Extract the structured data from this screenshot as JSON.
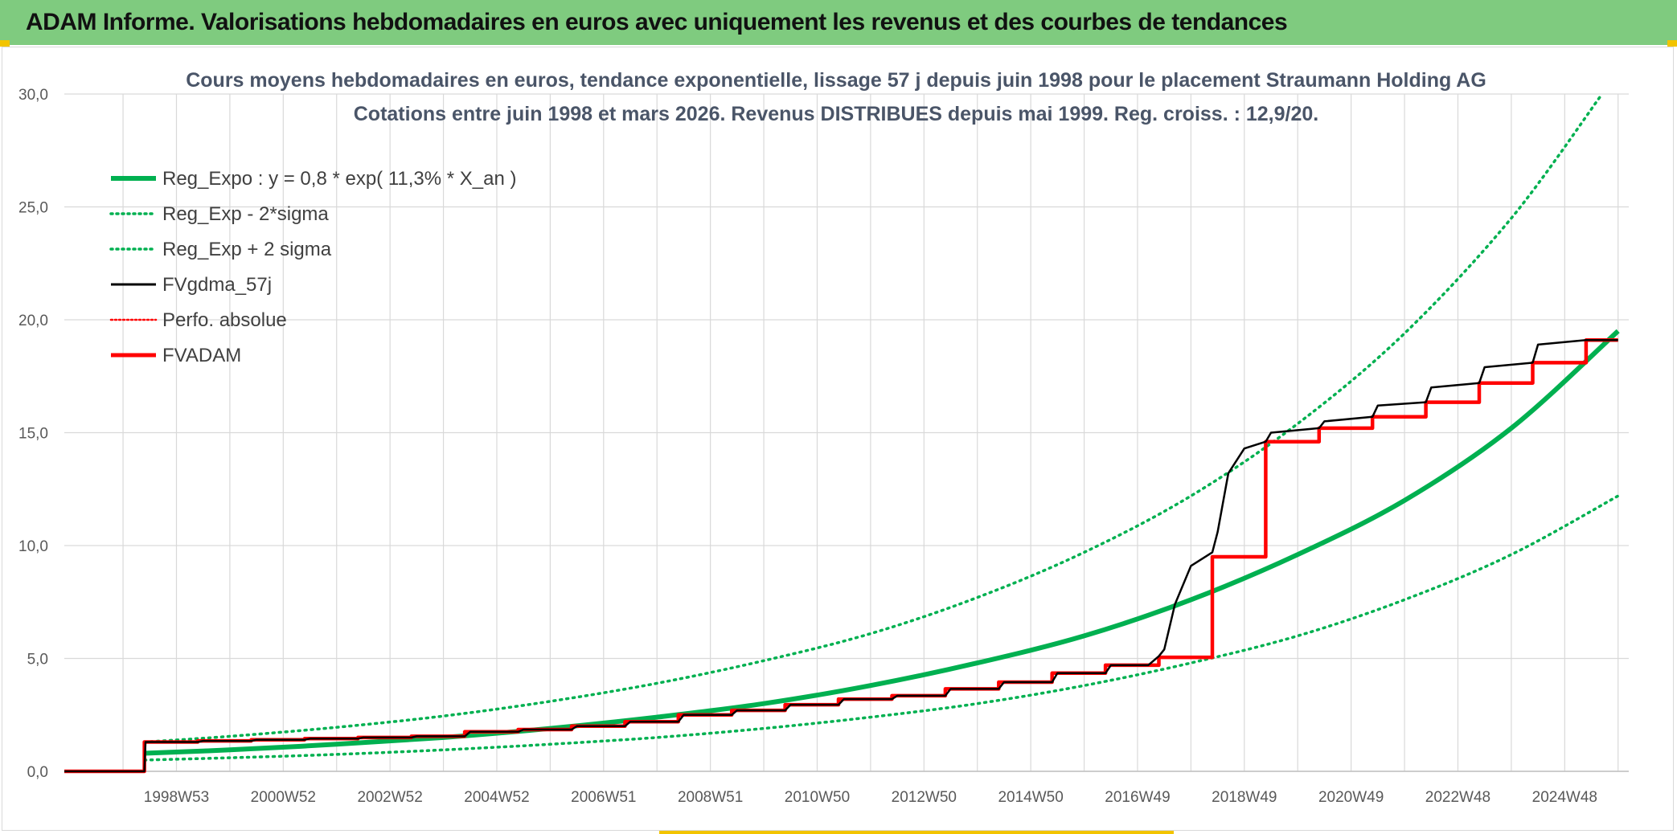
{
  "header": {
    "title": "ADAM Informe. Valorisations hebdomadaires en euros avec uniquement les revenus et des courbes de tendances"
  },
  "colors": {
    "header_bg": "#7fcb7f",
    "reg_expo": "#00b050",
    "fvgdma": "#000000",
    "fvadam": "#ff0000",
    "perfo": "#ff0000",
    "grid": "#d9d9d9"
  },
  "chart_data": {
    "type": "line",
    "title_line1": "Cours moyens hebdomadaires en euros, tendance exponentielle, lissage 57 j depuis juin 1998 pour le placement Straumann Holding AG",
    "title_line2": "Cotations entre juin 1998 et mars 2026. Revenus DISTRIBUES depuis mai 1999. Reg. croiss. : 12,9/20.",
    "ylim": [
      0,
      30
    ],
    "xlim": [
      1996.9,
      2026.2
    ],
    "grid": true,
    "legend_position": "top-left",
    "y_ticks": [
      "0,0",
      "5,0",
      "10,0",
      "15,0",
      "20,0",
      "25,0",
      "30,0"
    ],
    "x_ticks": [
      {
        "label": "1998W53",
        "x": 1999.0
      },
      {
        "label": "2000W52",
        "x": 2001.0
      },
      {
        "label": "2002W52",
        "x": 2003.0
      },
      {
        "label": "2004W52",
        "x": 2005.0
      },
      {
        "label": "2006W51",
        "x": 2007.0
      },
      {
        "label": "2008W51",
        "x": 2009.0
      },
      {
        "label": "2010W50",
        "x": 2011.0
      },
      {
        "label": "2012W50",
        "x": 2013.0
      },
      {
        "label": "2014W50",
        "x": 2015.0
      },
      {
        "label": "2016W49",
        "x": 2017.0
      },
      {
        "label": "2018W49",
        "x": 2019.0
      },
      {
        "label": "2020W49",
        "x": 2021.0
      },
      {
        "label": "2022W48",
        "x": 2023.0
      },
      {
        "label": "2024W48",
        "x": 2025.0
      }
    ],
    "legend": [
      {
        "label": "Reg_Expo : y = 0,8 * exp( 11,3% *  X_an )",
        "style": "thick-green"
      },
      {
        "label": "Reg_Exp - 2*sigma",
        "style": "dotted-green"
      },
      {
        "label": "Reg_Exp + 2 sigma",
        "style": "dotted-green"
      },
      {
        "label": "FVgdma_57j",
        "style": "black"
      },
      {
        "label": "Perfo. absolue",
        "style": "dotted-red"
      },
      {
        "label": "FVADAM",
        "style": "thick-red"
      }
    ],
    "series": [
      {
        "name": "Reg_Expo : y = 0,8 * exp( 11,3% *  X_an )",
        "x": [
          1998.4,
          2000,
          2002,
          2004,
          2006,
          2008,
          2010,
          2012,
          2014,
          2016,
          2018,
          2020,
          2022,
          2024,
          2026
        ],
        "values": [
          0.8,
          0.95,
          1.2,
          1.5,
          1.9,
          2.4,
          3.0,
          3.8,
          4.8,
          6.0,
          7.6,
          9.6,
          12.0,
          15.2,
          19.5
        ]
      },
      {
        "name": "Reg_Exp - 2*sigma",
        "x": [
          1998.4,
          2000,
          2002,
          2004,
          2006,
          2008,
          2010,
          2012,
          2014,
          2016,
          2018,
          2020,
          2022,
          2024,
          2026
        ],
        "values": [
          0.5,
          0.6,
          0.75,
          0.95,
          1.2,
          1.5,
          1.9,
          2.4,
          3.0,
          3.8,
          4.8,
          6.0,
          7.6,
          9.6,
          12.2
        ]
      },
      {
        "name": "Reg_Exp + 2 sigma",
        "x": [
          1998.4,
          2000,
          2002,
          2004,
          2006,
          2008,
          2010,
          2012,
          2014,
          2016,
          2018,
          2020,
          2022,
          2024,
          2025.7
        ],
        "values": [
          1.3,
          1.55,
          1.95,
          2.45,
          3.1,
          3.9,
          4.9,
          6.1,
          7.7,
          9.7,
          12.2,
          15.4,
          19.4,
          24.5,
          30.0
        ]
      },
      {
        "name": "FVADAM",
        "x": [
          1996.9,
          1998.4,
          1998.4,
          1999.4,
          1999.4,
          2000.4,
          2000.4,
          2001.4,
          2001.4,
          2002.4,
          2002.4,
          2003.4,
          2003.4,
          2004.4,
          2004.4,
          2005.4,
          2005.4,
          2006.4,
          2006.4,
          2007.4,
          2007.4,
          2008.4,
          2008.4,
          2009.4,
          2009.4,
          2010.4,
          2010.4,
          2011.4,
          2011.4,
          2012.4,
          2012.4,
          2013.4,
          2013.4,
          2014.4,
          2014.4,
          2015.4,
          2015.4,
          2016.4,
          2016.4,
          2017.4,
          2017.4,
          2018.4,
          2018.4,
          2019.4,
          2019.4,
          2020.4,
          2020.4,
          2021.4,
          2021.4,
          2022.4,
          2022.4,
          2023.4,
          2023.4,
          2024.4,
          2024.4,
          2025.4,
          2025.4,
          2026.0
        ],
        "values": [
          0,
          0,
          1.3,
          1.3,
          1.35,
          1.35,
          1.4,
          1.4,
          1.45,
          1.45,
          1.5,
          1.5,
          1.55,
          1.55,
          1.75,
          1.75,
          1.85,
          1.85,
          2.0,
          2.0,
          2.2,
          2.2,
          2.5,
          2.5,
          2.7,
          2.7,
          2.95,
          2.95,
          3.2,
          3.2,
          3.35,
          3.35,
          3.65,
          3.65,
          3.95,
          3.95,
          4.35,
          4.35,
          4.7,
          4.7,
          5.05,
          5.05,
          9.5,
          9.5,
          14.6,
          14.6,
          15.2,
          15.2,
          15.7,
          15.7,
          16.35,
          16.35,
          17.2,
          17.2,
          18.1,
          18.1,
          19.1,
          19.1
        ]
      },
      {
        "name": "FVgdma_57j",
        "x": [
          1996.9,
          1998.4,
          1998.42,
          1999.4,
          1999.5,
          2000.4,
          2000.5,
          2001.4,
          2001.5,
          2002.4,
          2002.5,
          2003.4,
          2003.5,
          2004.4,
          2004.5,
          2005.4,
          2005.5,
          2006.4,
          2006.5,
          2007.4,
          2007.5,
          2008.4,
          2008.5,
          2009.4,
          2009.5,
          2010.4,
          2010.5,
          2011.4,
          2011.5,
          2012.4,
          2012.5,
          2013.4,
          2013.5,
          2014.4,
          2014.5,
          2015.4,
          2015.5,
          2016.4,
          2016.5,
          2017.2,
          2017.4,
          2017.5,
          2017.7,
          2018.0,
          2018.4,
          2018.5,
          2018.7,
          2019.0,
          2019.4,
          2019.5,
          2020.4,
          2020.5,
          2021.4,
          2021.5,
          2022.4,
          2022.5,
          2023.4,
          2023.5,
          2024.4,
          2024.5,
          2025.4,
          2025.5,
          2026.0
        ],
        "values": [
          0,
          0,
          1.3,
          1.3,
          1.35,
          1.35,
          1.4,
          1.4,
          1.45,
          1.45,
          1.5,
          1.5,
          1.55,
          1.55,
          1.75,
          1.75,
          1.85,
          1.85,
          2.0,
          2.0,
          2.2,
          2.2,
          2.5,
          2.5,
          2.7,
          2.7,
          2.95,
          2.95,
          3.2,
          3.2,
          3.35,
          3.35,
          3.65,
          3.65,
          3.95,
          3.95,
          4.35,
          4.35,
          4.7,
          4.7,
          5.1,
          5.4,
          7.4,
          9.1,
          9.7,
          10.6,
          13.2,
          14.3,
          14.6,
          15.0,
          15.2,
          15.5,
          15.7,
          16.2,
          16.35,
          17.0,
          17.2,
          17.9,
          18.1,
          18.9,
          19.1,
          19.1,
          19.1
        ]
      }
    ]
  }
}
